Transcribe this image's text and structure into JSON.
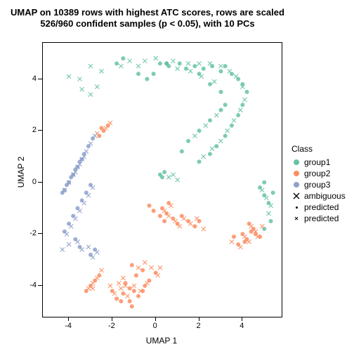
{
  "chart": {
    "type": "scatter",
    "title_line1": "UMAP on 10389 rows with highest ATC scores, rows are scaled",
    "title_line2": "526/960 confident samples (p < 0.05), with 10 PCs",
    "title_fontsize": 13,
    "xlabel": "UMAP 1",
    "ylabel": "UMAP 2",
    "label_fontsize": 12,
    "xlim": [
      -5.2,
      5.8
    ],
    "ylim": [
      -5.2,
      5.4
    ],
    "xticks": [
      -4,
      -2,
      0,
      2,
      4
    ],
    "yticks": [
      -4,
      -2,
      0,
      2,
      4
    ],
    "background_color": "#ffffff",
    "colors": {
      "group1": "#66c2a5",
      "group2": "#fc8d62",
      "group3": "#8da0cb",
      "axis": "#000000"
    },
    "legend": {
      "title": "Class",
      "items": [
        {
          "label": "group1",
          "marker": "dot",
          "color": "#66c2a5"
        },
        {
          "label": "group2",
          "marker": "dot",
          "color": "#fc8d62"
        },
        {
          "label": "group3",
          "marker": "dot",
          "color": "#8da0cb"
        },
        {
          "label": "ambiguous",
          "marker": "cross",
          "color": "#000000"
        },
        {
          "label": "predicted",
          "marker": "small-dot",
          "color": "#000000"
        },
        {
          "label": "predicted",
          "marker": "small-cross",
          "color": "#000000"
        }
      ]
    },
    "marker_size_solid": 3.0,
    "marker_size_cross": 3.0,
    "marker_size_small": 1.0,
    "series": {
      "group1_solid": [
        [
          0.2,
          4.6
        ],
        [
          0.6,
          4.5
        ],
        [
          1.1,
          4.6
        ],
        [
          1.4,
          4.4
        ],
        [
          1.8,
          4.5
        ],
        [
          2.2,
          4.4
        ],
        [
          2.6,
          4.5
        ],
        [
          3.0,
          4.3
        ],
        [
          3.2,
          4.5
        ],
        [
          3.5,
          4.2
        ],
        [
          3.8,
          4.0
        ],
        [
          4.0,
          3.8
        ],
        [
          4.2,
          3.5
        ],
        [
          4.0,
          3.0
        ],
        [
          3.8,
          2.6
        ],
        [
          3.5,
          2.2
        ],
        [
          3.2,
          1.8
        ],
        [
          2.8,
          1.4
        ],
        [
          2.5,
          1.1
        ],
        [
          2.0,
          0.8
        ],
        [
          3.0,
          2.8
        ],
        [
          2.5,
          2.4
        ],
        [
          2.0,
          2.0
        ],
        [
          1.5,
          1.6
        ],
        [
          1.2,
          1.2
        ],
        [
          0.4,
          0.4
        ],
        [
          0.3,
          0.2
        ],
        [
          0.2,
          0.3
        ],
        [
          5.0,
          -0.5
        ],
        [
          5.2,
          -0.8
        ],
        [
          5.4,
          -0.4
        ],
        [
          4.8,
          -0.2
        ],
        [
          5.0,
          0.0
        ],
        [
          5.3,
          -1.5
        ],
        [
          5.0,
          -1.8
        ],
        [
          -1.5,
          4.8
        ],
        [
          -1.8,
          4.6
        ],
        [
          -0.8,
          4.2
        ],
        [
          -0.4,
          4.0
        ],
        [
          -0.1,
          4.2
        ],
        [
          0.5,
          4.6
        ],
        [
          0.5,
          4.6
        ],
        [
          0.5,
          4.6
        ],
        [
          2.0,
          4.2
        ],
        [
          2.5,
          3.8
        ],
        [
          3.0,
          3.5
        ],
        [
          3.2,
          3.0
        ]
      ],
      "group1_cross": [
        [
          -0.5,
          4.7
        ],
        [
          0.0,
          4.8
        ],
        [
          0.8,
          4.7
        ],
        [
          1.5,
          4.6
        ],
        [
          2.0,
          4.6
        ],
        [
          2.5,
          4.6
        ],
        [
          3.0,
          4.5
        ],
        [
          3.4,
          4.3
        ],
        [
          3.7,
          4.1
        ],
        [
          4.0,
          3.7
        ],
        [
          4.1,
          3.2
        ],
        [
          3.9,
          2.8
        ],
        [
          3.6,
          2.4
        ],
        [
          3.3,
          2.0
        ],
        [
          3.0,
          1.6
        ],
        [
          2.6,
          1.3
        ],
        [
          2.2,
          1.0
        ],
        [
          2.8,
          2.6
        ],
        [
          2.3,
          2.2
        ],
        [
          1.8,
          1.8
        ],
        [
          -2.5,
          4.3
        ],
        [
          -3.0,
          4.5
        ],
        [
          -3.5,
          4.0
        ],
        [
          -4.0,
          4.1
        ],
        [
          5.1,
          -0.6
        ],
        [
          5.3,
          -0.9
        ],
        [
          4.9,
          -0.3
        ],
        [
          5.2,
          -1.2
        ],
        [
          -0.8,
          4.5
        ],
        [
          -1.2,
          4.7
        ],
        [
          -1.6,
          4.5
        ],
        [
          1.0,
          4.4
        ],
        [
          1.6,
          4.3
        ],
        [
          2.1,
          4.1
        ],
        [
          2.7,
          3.9
        ],
        [
          -3.4,
          3.6
        ],
        [
          -3.0,
          3.4
        ],
        [
          -2.7,
          3.7
        ],
        [
          0.6,
          0.2
        ],
        [
          0.8,
          0.3
        ],
        [
          1.0,
          0.1
        ]
      ],
      "group2_solid": [
        [
          -1.0,
          -4.2
        ],
        [
          -0.8,
          -4.4
        ],
        [
          -1.2,
          -4.6
        ],
        [
          -1.5,
          -4.3
        ],
        [
          -0.5,
          -4.0
        ],
        [
          -1.8,
          -4.5
        ],
        [
          -0.3,
          -3.8
        ],
        [
          -2.0,
          -4.2
        ],
        [
          -1.4,
          -3.9
        ],
        [
          -0.9,
          -3.6
        ],
        [
          -0.6,
          -3.4
        ],
        [
          -1.1,
          -3.2
        ],
        [
          0.0,
          -3.5
        ],
        [
          -3.0,
          -4.0
        ],
        [
          -2.8,
          -3.8
        ],
        [
          -3.2,
          -4.2
        ],
        [
          -2.6,
          -3.6
        ],
        [
          0.5,
          -1.2
        ],
        [
          0.8,
          -1.4
        ],
        [
          1.0,
          -1.6
        ],
        [
          0.3,
          -1.0
        ],
        [
          0.6,
          -0.8
        ],
        [
          1.2,
          -1.3
        ],
        [
          1.5,
          -1.5
        ],
        [
          0.2,
          -1.3
        ],
        [
          -0.1,
          -1.1
        ],
        [
          0.4,
          -1.5
        ],
        [
          -0.3,
          -0.9
        ],
        [
          4.0,
          -2.0
        ],
        [
          4.2,
          -2.2
        ],
        [
          4.5,
          -1.8
        ],
        [
          4.3,
          -1.6
        ],
        [
          3.8,
          -2.4
        ],
        [
          4.6,
          -2.0
        ],
        [
          3.6,
          -2.1
        ],
        [
          -2.4,
          2.0
        ],
        [
          -2.6,
          1.8
        ],
        [
          -2.2,
          2.2
        ],
        [
          -2.5,
          2.1
        ],
        [
          4.8,
          -2.1
        ],
        [
          4.4,
          -1.9
        ],
        [
          4.1,
          -2.3
        ],
        [
          1.8,
          -1.7
        ],
        [
          2.0,
          -1.5
        ],
        [
          -1.1,
          -4.8
        ],
        [
          -1.2,
          -4.1
        ],
        [
          -0.6,
          -4.2
        ],
        [
          -1.6,
          -4.6
        ]
      ],
      "group2_cross": [
        [
          -1.0,
          -4.0
        ],
        [
          -0.7,
          -4.2
        ],
        [
          -1.3,
          -4.4
        ],
        [
          -1.6,
          -4.1
        ],
        [
          -0.4,
          -3.9
        ],
        [
          -1.9,
          -4.3
        ],
        [
          0.1,
          -3.6
        ],
        [
          -2.1,
          -4.0
        ],
        [
          -1.5,
          -3.7
        ],
        [
          -2.9,
          -3.9
        ],
        [
          -3.1,
          -4.1
        ],
        [
          -2.7,
          -3.7
        ],
        [
          0.6,
          -1.3
        ],
        [
          0.9,
          -1.5
        ],
        [
          1.1,
          -1.7
        ],
        [
          0.4,
          -1.1
        ],
        [
          0.7,
          -0.9
        ],
        [
          1.3,
          -1.4
        ],
        [
          1.6,
          -1.6
        ],
        [
          4.1,
          -2.1
        ],
        [
          4.3,
          -2.3
        ],
        [
          4.6,
          -1.9
        ],
        [
          4.4,
          -1.7
        ],
        [
          3.9,
          -2.5
        ],
        [
          4.7,
          -2.1
        ],
        [
          -2.3,
          2.1
        ],
        [
          -2.7,
          1.9
        ],
        [
          -2.1,
          2.3
        ],
        [
          -0.8,
          -3.3
        ],
        [
          -0.5,
          -3.1
        ],
        [
          -0.2,
          -3.3
        ],
        [
          0.2,
          -3.3
        ],
        [
          -2.5,
          -3.4
        ],
        [
          2.2,
          -1.8
        ],
        [
          1.9,
          -1.4
        ],
        [
          4.9,
          -1.7
        ],
        [
          3.5,
          -2.3
        ],
        [
          -1.7,
          -3.9
        ],
        [
          -1.4,
          -4.0
        ],
        [
          -2.9,
          -4.1
        ]
      ],
      "group3_solid": [
        [
          -3.5,
          0.8
        ],
        [
          -3.7,
          0.5
        ],
        [
          -3.3,
          1.1
        ],
        [
          -3.9,
          0.2
        ],
        [
          -3.1,
          1.4
        ],
        [
          -4.1,
          -0.1
        ],
        [
          -2.9,
          1.7
        ],
        [
          -4.3,
          -0.4
        ],
        [
          -3.6,
          -1.0
        ],
        [
          -3.8,
          -1.3
        ],
        [
          -3.4,
          -0.7
        ],
        [
          -4.0,
          -1.6
        ],
        [
          -3.2,
          -0.4
        ],
        [
          -4.2,
          -1.9
        ],
        [
          -3.0,
          -0.1
        ],
        [
          -3.7,
          -2.2
        ],
        [
          -3.5,
          -2.5
        ],
        [
          -2.8,
          -2.6
        ],
        [
          -3.0,
          -2.8
        ],
        [
          -3.4,
          0.9
        ],
        [
          -3.6,
          0.6
        ],
        [
          -3.8,
          0.3
        ],
        [
          -4.0,
          0.0
        ],
        [
          -4.2,
          -0.3
        ]
      ],
      "group3_cross": [
        [
          -3.4,
          0.9
        ],
        [
          -3.6,
          0.6
        ],
        [
          -3.2,
          1.2
        ],
        [
          -3.8,
          0.3
        ],
        [
          -3.0,
          1.5
        ],
        [
          -4.0,
          0.0
        ],
        [
          -2.8,
          1.8
        ],
        [
          -4.2,
          -0.3
        ],
        [
          -3.5,
          -1.1
        ],
        [
          -3.7,
          -1.4
        ],
        [
          -3.3,
          -0.8
        ],
        [
          -3.9,
          -1.7
        ],
        [
          -3.1,
          -0.5
        ],
        [
          -4.1,
          -2.0
        ],
        [
          -2.9,
          -0.2
        ],
        [
          -3.6,
          -2.3
        ],
        [
          -3.4,
          -2.6
        ],
        [
          -2.7,
          -2.7
        ],
        [
          -2.9,
          -2.9
        ],
        [
          -3.1,
          -2.5
        ],
        [
          -4.0,
          -2.4
        ],
        [
          -4.3,
          -2.6
        ],
        [
          -3.3,
          1.0
        ],
        [
          -3.5,
          0.7
        ],
        [
          -3.7,
          0.4
        ]
      ]
    }
  }
}
